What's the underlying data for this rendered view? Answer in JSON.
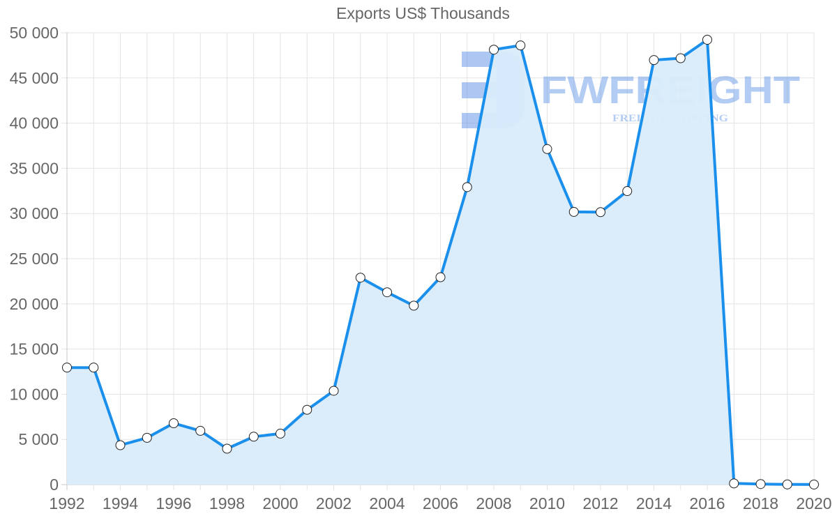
{
  "chart_data": {
    "type": "area",
    "title": "Exports US$ Thousands",
    "xlabel": "",
    "ylabel": "",
    "x": [
      1992,
      1993,
      1994,
      1995,
      1996,
      1997,
      1998,
      1999,
      2000,
      2001,
      2002,
      2003,
      2004,
      2005,
      2006,
      2007,
      2008,
      2009,
      2010,
      2011,
      2012,
      2013,
      2014,
      2015,
      2016,
      2017,
      2018,
      2019,
      2020
    ],
    "series": [
      {
        "name": "Exports US$ Thousands",
        "values": [
          12950,
          12950,
          4360,
          5180,
          6790,
          5950,
          3970,
          5300,
          5640,
          8280,
          10380,
          22900,
          21280,
          19800,
          22950,
          32920,
          48130,
          48600,
          37130,
          30180,
          30150,
          32480,
          46980,
          47180,
          49230,
          130,
          60,
          20,
          10
        ]
      }
    ],
    "ylim": [
      0,
      50000
    ],
    "y_ticks": [
      "0",
      "5 000",
      "10 000",
      "15 000",
      "20 000",
      "25 000",
      "30 000",
      "35 000",
      "40 000",
      "45 000",
      "50 000"
    ],
    "x_ticks": [
      "1992",
      "1994",
      "1996",
      "1998",
      "2000",
      "2002",
      "2004",
      "2006",
      "2008",
      "2010",
      "2012",
      "2014",
      "2016",
      "2018",
      "2020"
    ],
    "grid": true,
    "legend": "none",
    "colors": {
      "line": "#1a8fec",
      "fill": "#d9ecfb",
      "point_fill": "#ffffff",
      "point_stroke": "#222222",
      "grid": "#e3e3e3"
    }
  },
  "watermark": {
    "brand": "FWFREIGHT",
    "tagline": "FREIGHT SHIPPING"
  }
}
